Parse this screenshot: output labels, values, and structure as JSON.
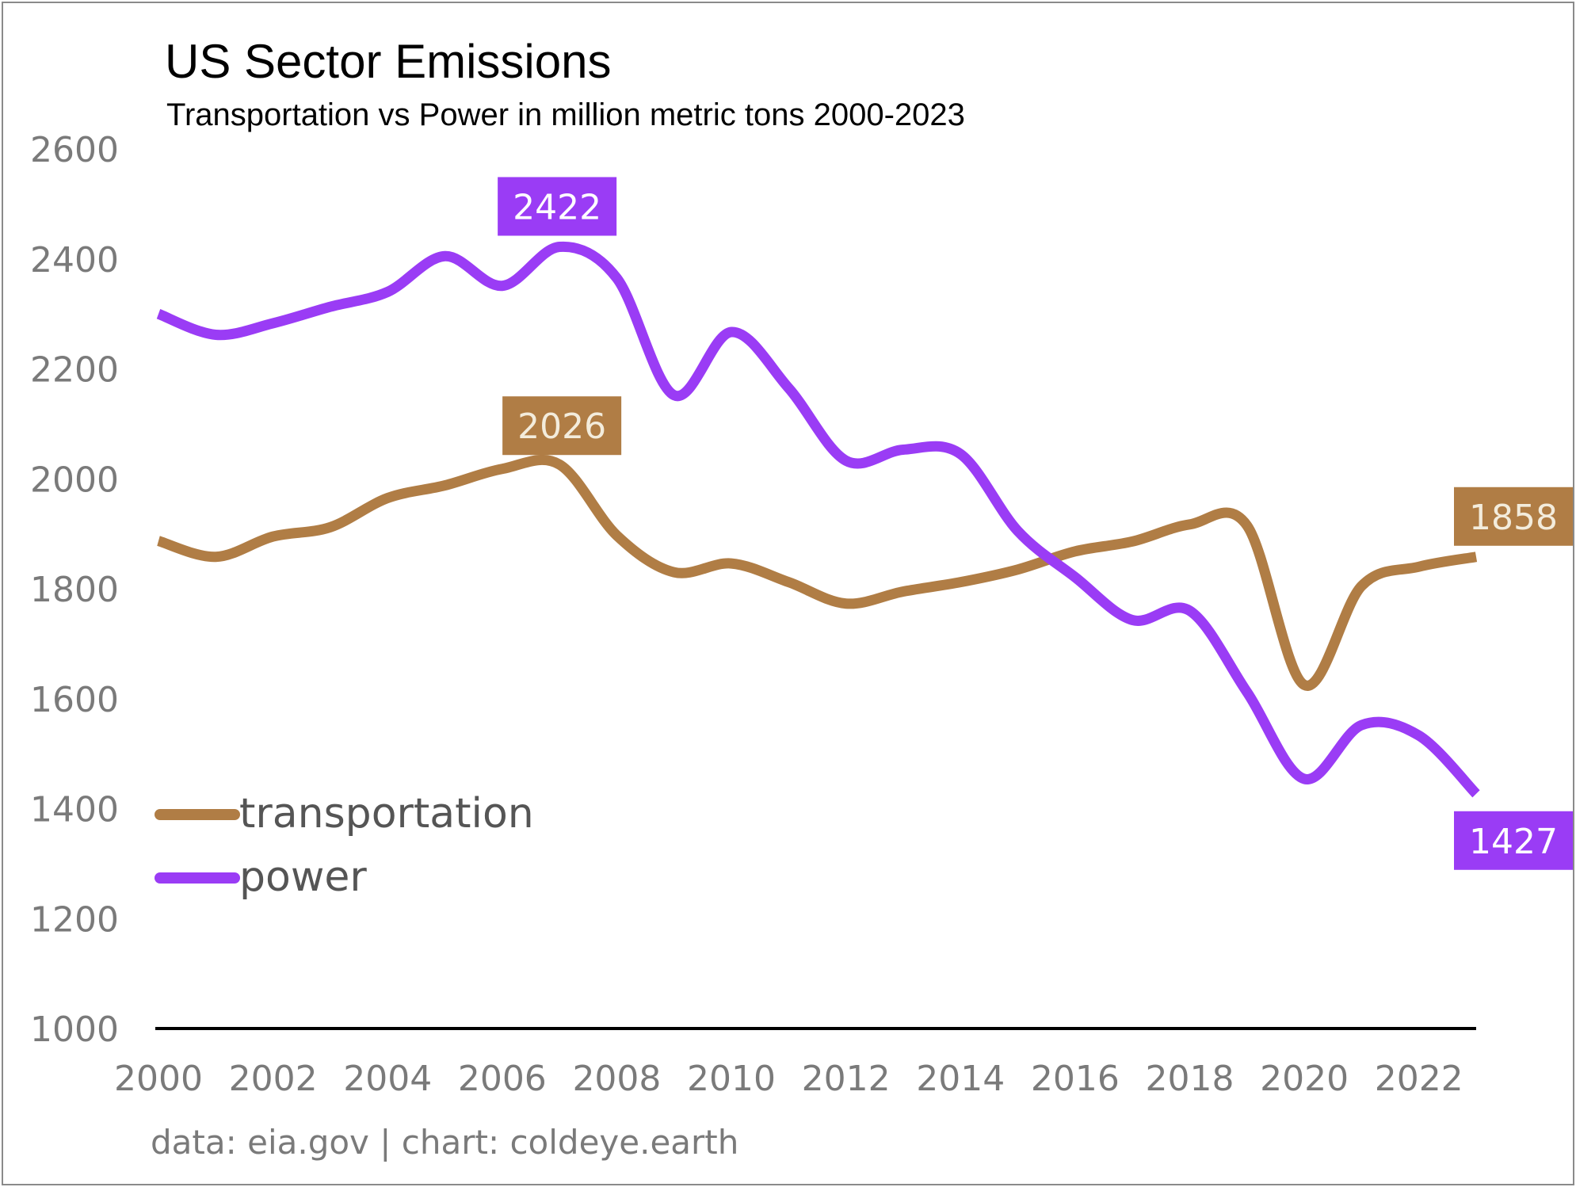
{
  "chart_data": {
    "type": "line",
    "title": "US Sector Emissions",
    "subtitle": "Transportation vs Power in million metric tons 2000-2023",
    "xlabel": "",
    "ylabel": "",
    "x": [
      2000,
      2001,
      2002,
      2003,
      2004,
      2005,
      2006,
      2007,
      2008,
      2009,
      2010,
      2011,
      2012,
      2013,
      2014,
      2015,
      2016,
      2017,
      2018,
      2019,
      2020,
      2021,
      2022,
      2023
    ],
    "xlim": [
      2000,
      2023
    ],
    "ylim": [
      1000,
      2600
    ],
    "x_ticks": [
      "2000",
      "2002",
      "2004",
      "2006",
      "2008",
      "2010",
      "2012",
      "2014",
      "2016",
      "2018",
      "2020",
      "2022"
    ],
    "y_ticks": [
      "1000",
      "1200",
      "1400",
      "1600",
      "1800",
      "2000",
      "2200",
      "2400",
      "2600"
    ],
    "series": [
      {
        "name": "transportation",
        "color": "#b07d45",
        "values": [
          1887,
          1858,
          1895,
          1912,
          1965,
          1988,
          2018,
          2026,
          1897,
          1830,
          1846,
          1812,
          1773,
          1795,
          1812,
          1835,
          1868,
          1886,
          1917,
          1915,
          1625,
          1805,
          1840,
          1858
        ]
      },
      {
        "name": "power",
        "color": "#9a3cf5",
        "values": [
          2300,
          2262,
          2283,
          2313,
          2340,
          2405,
          2351,
          2422,
          2365,
          2152,
          2267,
          2165,
          2033,
          2053,
          2045,
          1905,
          1821,
          1743,
          1760,
          1612,
          1454,
          1552,
          1533,
          1427
        ]
      }
    ],
    "data_labels": [
      {
        "text": "2422",
        "series": "power",
        "x": 2007,
        "y": 2422
      },
      {
        "text": "2026",
        "series": "transportation",
        "x": 2007,
        "y": 2026
      },
      {
        "text": "1858",
        "series": "transportation",
        "x": 2023,
        "y": 1858
      },
      {
        "text": "1427",
        "series": "power",
        "x": 2023,
        "y": 1427
      }
    ],
    "legend": {
      "placement": "lower-left"
    },
    "grid": false,
    "source": "data: eia.gov | chart: coldeye.earth"
  }
}
